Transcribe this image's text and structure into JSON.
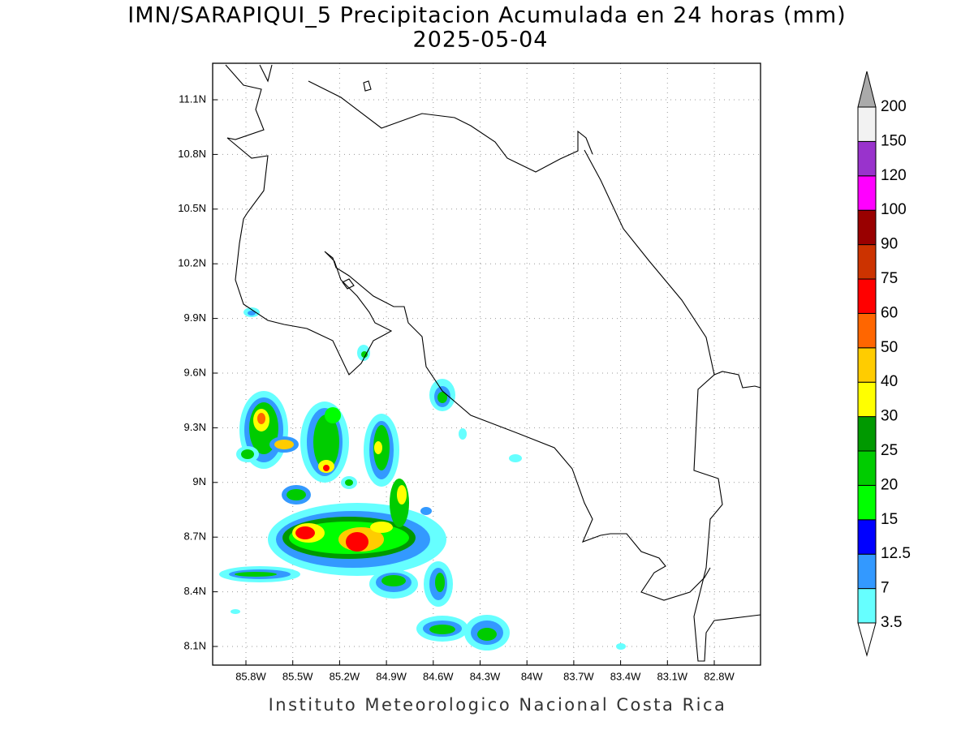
{
  "title": "IMN/SARAPIQUI_5 Precipitacion Acumulada en 24 horas (mm)",
  "subtitle": "2025-05-04",
  "map": {
    "lon_labels": [
      "85.8W",
      "85.5W",
      "85.2W",
      "84.9W",
      "84.6W",
      "84.3W",
      "84W",
      "83.7W",
      "83.4W",
      "83.1W",
      "82.8W"
    ],
    "lat_labels": [
      "11.1N",
      "10.8N",
      "10.5N",
      "10.2N",
      "9.9N",
      "9.6N",
      "9.3N",
      "9N",
      "8.7N",
      "8.4N",
      "8.1N"
    ]
  },
  "colorbar": {
    "labels": [
      "3.5",
      "7",
      "12.5",
      "15",
      "20",
      "25",
      "30",
      "40",
      "50",
      "60",
      "75",
      "90",
      "100",
      "120",
      "150",
      "200"
    ],
    "colors": [
      "#66ffff",
      "#3399ff",
      "#0000ff",
      "#00ff00",
      "#00cc00",
      "#009900",
      "#ffff00",
      "#ffcc00",
      "#ff6600",
      "#ff0000",
      "#cc3300",
      "#990000",
      "#ff00ff",
      "#9933cc",
      "#f2f2f2"
    ],
    "under_color": "#ffffff",
    "over_color": "#aaaaaa"
  },
  "footer": "Instituto Meteorologico Nacional Costa Rica"
}
